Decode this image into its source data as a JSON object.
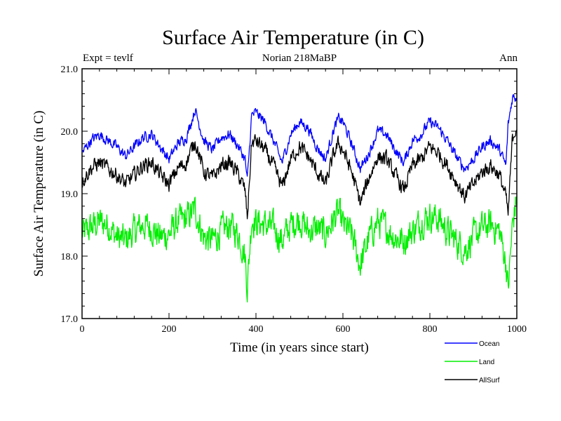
{
  "chart_data": {
    "type": "line",
    "title": "Surface Air Temperature (in C)",
    "subtitle_left": "Expt = tevlf",
    "subtitle_center": "Norian 218MaBP",
    "subtitle_right": "Ann",
    "xlabel": "Time (in years since start)",
    "ylabel": "Surface Air Temperature (in C)",
    "xlim": [
      0,
      1000
    ],
    "ylim": [
      17.0,
      21.0
    ],
    "x_ticks": [
      0,
      200,
      400,
      600,
      800,
      1000
    ],
    "x_tick_labels": [
      "0",
      "200",
      "400",
      "600",
      "800",
      "1000"
    ],
    "y_ticks": [
      17.0,
      18.0,
      19.0,
      20.0,
      21.0
    ],
    "y_tick_labels": [
      "17.0",
      "18.0",
      "19.0",
      "20.0",
      "21.0"
    ],
    "grid": false,
    "legend_position": "bottom-right, below axes",
    "series": [
      {
        "name": "Ocean",
        "color": "#0000ff",
        "x": [
          0,
          20,
          40,
          60,
          80,
          100,
          120,
          140,
          160,
          180,
          200,
          220,
          240,
          260,
          280,
          300,
          320,
          340,
          360,
          375,
          380,
          390,
          400,
          420,
          440,
          460,
          480,
          500,
          520,
          540,
          560,
          580,
          590,
          600,
          620,
          640,
          660,
          680,
          700,
          720,
          740,
          760,
          780,
          800,
          820,
          840,
          860,
          880,
          900,
          920,
          940,
          960,
          975,
          980,
          990,
          1000
        ],
        "values": [
          19.65,
          19.85,
          19.95,
          19.85,
          19.75,
          19.6,
          19.75,
          19.9,
          19.95,
          19.75,
          19.55,
          19.8,
          19.9,
          20.35,
          19.85,
          19.7,
          19.9,
          19.95,
          19.75,
          19.55,
          19.2,
          20.25,
          20.3,
          20.15,
          19.85,
          19.5,
          19.95,
          20.15,
          20.05,
          19.75,
          19.55,
          20.05,
          20.2,
          20.15,
          19.8,
          19.4,
          19.65,
          20.0,
          19.95,
          19.7,
          19.5,
          19.85,
          19.95,
          20.15,
          20.05,
          19.85,
          19.6,
          19.4,
          19.55,
          19.75,
          19.85,
          19.7,
          19.45,
          20.1,
          20.55,
          20.55
        ]
      },
      {
        "name": "Land",
        "color": "#00ee00",
        "x": [
          0,
          20,
          40,
          60,
          80,
          100,
          120,
          140,
          160,
          180,
          200,
          220,
          240,
          260,
          280,
          300,
          320,
          340,
          360,
          375,
          380,
          390,
          400,
          420,
          440,
          460,
          480,
          500,
          520,
          540,
          560,
          580,
          590,
          600,
          620,
          640,
          660,
          680,
          700,
          720,
          740,
          760,
          780,
          800,
          820,
          840,
          860,
          880,
          900,
          920,
          940,
          960,
          975,
          980,
          990,
          1000
        ],
        "values": [
          18.35,
          18.45,
          18.55,
          18.5,
          18.3,
          18.25,
          18.4,
          18.5,
          18.45,
          18.3,
          18.35,
          18.55,
          18.6,
          18.75,
          18.3,
          18.25,
          18.4,
          18.5,
          18.35,
          18.0,
          17.5,
          18.6,
          18.55,
          18.5,
          18.45,
          18.25,
          18.5,
          18.6,
          18.4,
          18.45,
          18.35,
          18.6,
          18.7,
          18.5,
          18.35,
          17.85,
          18.3,
          18.55,
          18.45,
          18.3,
          18.25,
          18.4,
          18.55,
          18.65,
          18.6,
          18.4,
          18.25,
          18.1,
          18.3,
          18.45,
          18.5,
          18.4,
          17.9,
          17.45,
          18.5,
          18.95
        ]
      },
      {
        "name": "AllSurf",
        "color": "#000000",
        "x": [
          0,
          20,
          40,
          60,
          80,
          100,
          120,
          140,
          160,
          180,
          200,
          220,
          240,
          260,
          280,
          300,
          320,
          340,
          360,
          375,
          380,
          390,
          400,
          420,
          440,
          460,
          480,
          500,
          520,
          540,
          560,
          580,
          590,
          600,
          620,
          640,
          660,
          680,
          700,
          720,
          740,
          760,
          780,
          800,
          820,
          840,
          860,
          880,
          900,
          920,
          940,
          960,
          975,
          980,
          990,
          1000
        ],
        "values": [
          19.2,
          19.4,
          19.5,
          19.4,
          19.3,
          19.15,
          19.3,
          19.45,
          19.5,
          19.3,
          19.15,
          19.4,
          19.5,
          19.85,
          19.35,
          19.25,
          19.45,
          19.5,
          19.3,
          19.05,
          18.6,
          19.8,
          19.85,
          19.7,
          19.45,
          19.1,
          19.55,
          19.75,
          19.6,
          19.35,
          19.15,
          19.65,
          19.8,
          19.7,
          19.35,
          18.85,
          19.25,
          19.6,
          19.55,
          19.3,
          19.05,
          19.45,
          19.55,
          19.75,
          19.65,
          19.45,
          19.2,
          18.95,
          19.15,
          19.35,
          19.45,
          19.3,
          18.95,
          18.65,
          19.9,
          20.1
        ]
      }
    ]
  }
}
